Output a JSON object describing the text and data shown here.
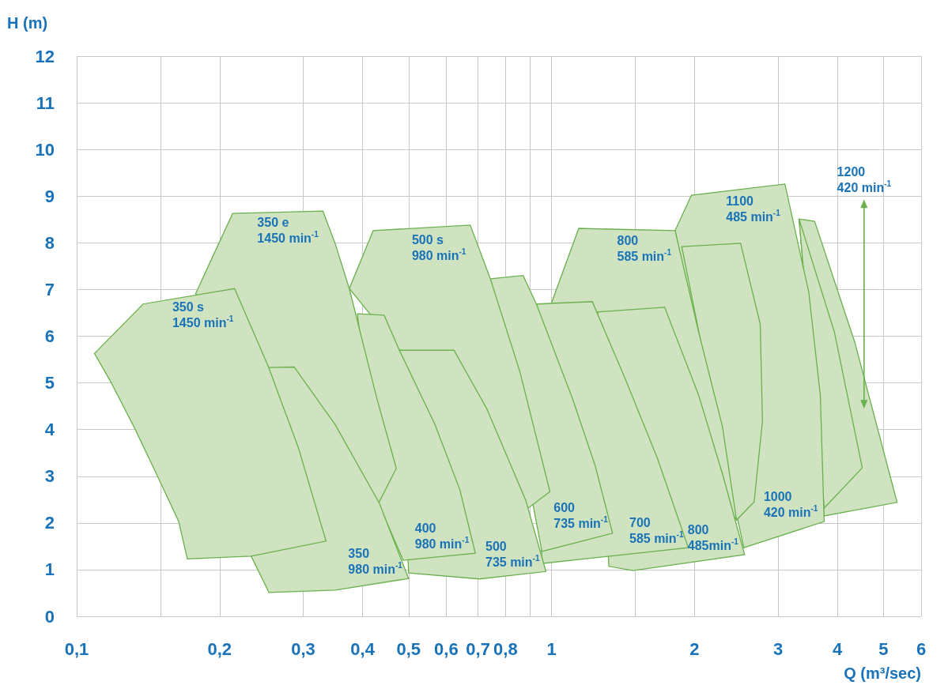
{
  "chart_data": {
    "type": "area",
    "xlabel": "Q (m³/sec)",
    "ylabel": "H (m)",
    "log": "x",
    "grid": true,
    "xlim": [
      0.1,
      6
    ],
    "xticks": [
      {
        "value": 0.1,
        "label": "0,1"
      },
      {
        "value": 0.15,
        "label": null
      },
      {
        "value": 0.2,
        "label": "0,2"
      },
      {
        "value": 0.3,
        "label": "0,3"
      },
      {
        "value": 0.4,
        "label": "0,4"
      },
      {
        "value": 0.5,
        "label": "0,5"
      },
      {
        "value": 0.6,
        "label": "0,6"
      },
      {
        "value": 0.7,
        "label": "0,7"
      },
      {
        "value": 0.8,
        "label": "0,8"
      },
      {
        "value": 0.9,
        "label": null
      },
      1,
      {
        "value": 1.5,
        "label": null
      },
      2,
      3,
      4,
      5,
      6
    ],
    "ylim": [
      0,
      12
    ],
    "yticks": [
      0,
      1,
      2,
      3,
      4,
      5,
      6,
      7,
      8,
      9,
      10,
      11,
      12
    ],
    "series": [
      {
        "color": "#cfe3c1",
        "x": [
          3.32,
          3.58,
          4.35,
          5.34,
          3.75
        ],
        "values": [
          8.51,
          8.46,
          5.87,
          2.44,
          2.15
        ]
      },
      {
        "color": "#cfe3c1",
        "x": [
          3.32,
          3.94,
          4.51,
          3.75
        ],
        "values": [
          8.51,
          6.09,
          3.18,
          2.32
        ]
      },
      {
        "color": "#cfe3c1",
        "x": [
          1.82,
          1.97,
          3.1,
          3.48,
          3.68,
          3.75,
          2.54
        ],
        "values": [
          8.26,
          9.02,
          9.26,
          6.94,
          4.74,
          2.03,
          1.47
        ]
      },
      {
        "color": "#cfe3c1",
        "x": [
          1.88,
          2.5,
          2.75,
          2.78,
          2.67,
          2.45
        ],
        "values": [
          7.92,
          7.99,
          6.26,
          4.18,
          2.45,
          2.06
        ]
      },
      {
        "color": "#cfe3c1",
        "x": [
          1.0,
          1.141,
          1.82,
          2.04,
          2.29,
          2.45
        ],
        "values": [
          6.72,
          8.31,
          8.26,
          6.09,
          4.06,
          2.08
        ]
      },
      {
        "color": "#cfe3c1",
        "x": [
          1.25,
          1.73,
          2.04,
          2.29,
          2.55,
          1.484,
          1.32
        ],
        "values": [
          6.52,
          6.62,
          4.74,
          3.05,
          1.32,
          0.98,
          1.07
        ]
      },
      {
        "color": "#cfe3c1",
        "x": [
          0.929,
          1.218,
          1.43,
          1.67,
          1.94,
          0.954
        ],
        "values": [
          6.69,
          6.74,
          5.08,
          3.39,
          1.47,
          1.13
        ]
      },
      {
        "color": "#cfe3c1",
        "x": [
          0.743,
          0.871,
          0.929,
          1.108,
          1.236,
          1.344,
          0.954
        ],
        "values": [
          7.23,
          7.3,
          6.69,
          4.65,
          3.22,
          1.78,
          1.39
        ]
      },
      {
        "color": "#cfe3c1",
        "x": [
          0.375,
          0.421,
          0.674,
          0.743,
          0.857,
          0.992,
          0.893
        ],
        "values": [
          7.02,
          8.26,
          8.38,
          7.23,
          5.25,
          2.67,
          2.32
        ]
      },
      {
        "color": "#cfe3c1",
        "x": [
          0.478,
          0.623,
          0.73,
          0.882,
          0.973,
          0.705,
          0.5
        ],
        "values": [
          5.7,
          5.7,
          4.45,
          2.49,
          0.96,
          0.8,
          0.93
        ]
      },
      {
        "color": "#cfe3c1",
        "x": [
          0.39,
          0.444,
          0.478,
          0.568,
          0.641,
          0.691,
          0.487,
          0.432
        ],
        "values": [
          6.48,
          6.45,
          5.7,
          4.11,
          2.71,
          1.35,
          1.2,
          2.42
        ]
      },
      {
        "color": "#cfe3c1",
        "x": [
          0.178,
          0.213,
          0.33,
          0.35,
          0.375,
          0.428,
          0.471,
          0.432
        ],
        "values": [
          6.91,
          8.63,
          8.68,
          7.99,
          7.02,
          4.69,
          3.17,
          2.42
        ]
      },
      {
        "color": "#cfe3c1",
        "x": [
          0.253,
          0.287,
          0.35,
          0.434,
          0.5,
          0.35,
          0.254,
          0.233
        ],
        "values": [
          5.33,
          5.34,
          4.11,
          2.42,
          0.81,
          0.56,
          0.51,
          1.29
        ]
      },
      {
        "color": "#cfe3c1",
        "x": [
          0.109,
          0.138,
          0.215,
          0.253,
          0.293,
          0.335,
          0.233,
          0.171,
          0.164,
          0.148,
          0.132,
          0.118
        ],
        "values": [
          5.63,
          6.69,
          7.02,
          5.36,
          3.61,
          1.61,
          1.29,
          1.23,
          2.03,
          3.0,
          4.06,
          5.02
        ]
      },
      {
        "type": "line",
        "color": "#6ab04c",
        "marker": "triangle",
        "x": [
          4.55,
          4.55
        ],
        "values": [
          8.84,
          4.54
        ]
      }
    ],
    "annotations": [
      {
        "text": "350 e\n1450 min$^{-1}$",
        "x": 0.24,
        "y": 8.6
      },
      {
        "text": "350 s\n1450 min$^{-1}$",
        "x": 0.159,
        "y": 6.8
      },
      {
        "text": "350\n980 min$^{-1}$",
        "x": 0.5,
        "y": 0.81
      },
      {
        "text": "400\n980 min$^{-1}$",
        "x": 0.691,
        "y": 1.35
      },
      {
        "text": "500 s\n980 min$^{-1}$",
        "x": 0.508,
        "y": 8.24
      },
      {
        "text": "500\n735 min$^{-1}$",
        "x": 0.973,
        "y": 0.96
      },
      {
        "text": "600\n735 min$^{-1}$",
        "x": 1.344,
        "y": 1.78
      },
      {
        "text": "700\n585 min$^{-1}$",
        "x": 1.94,
        "y": 1.47
      },
      {
        "text": "800\n585 min$^{-1}$",
        "x": 1.374,
        "y": 8.21
      },
      {
        "text": "800\n485min$^{-1}$",
        "x": 2.55,
        "y": 1.32
      },
      {
        "text": "1100\n485 min$^{-1}$",
        "x": 2.33,
        "y": 9.06
      },
      {
        "text": "1000\n420 min$^{-1}$",
        "x": 3.75,
        "y": 2.03
      },
      {
        "text": "1200\n420 min$^{-1}$",
        "x": 4.55,
        "y": 8.84
      }
    ]
  }
}
